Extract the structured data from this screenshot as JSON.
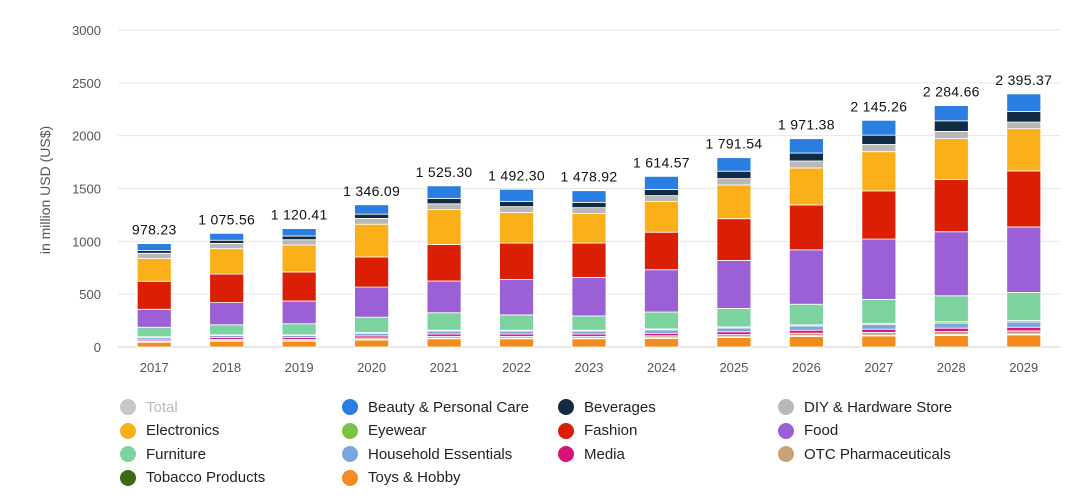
{
  "chart_data": {
    "type": "bar",
    "stacked": true,
    "ylabel": "in million USD (US$)",
    "ylim": [
      0,
      3000
    ],
    "yticks": [
      "0",
      "500",
      "1000",
      "1500",
      "2000",
      "2500",
      "3000"
    ],
    "grid": true,
    "legend_position": "bottom",
    "categories": [
      "2017",
      "2018",
      "2019",
      "2020",
      "2021",
      "2022",
      "2023",
      "2024",
      "2025",
      "2026",
      "2027",
      "2028",
      "2029"
    ],
    "totals": [
      978.23,
      1075.56,
      1120.41,
      1346.09,
      1525.3,
      1492.3,
      1478.92,
      1614.57,
      1791.54,
      1971.38,
      2145.26,
      2284.66,
      2395.37
    ],
    "total_labels": [
      "978.23",
      "1 075.56",
      "1 120.41",
      "1 346.09",
      "1 525.30",
      "1 492.30",
      "1 478.92",
      "1 614.57",
      "1 791.54",
      "1 971.38",
      "2 145.26",
      "2 284.66",
      "2 395.37"
    ],
    "series": [
      {
        "name": "Toys & Hobby",
        "color": "#f28c1e",
        "values": [
          45,
          55,
          55,
          65,
          78,
          78,
          78,
          80,
          90,
          100,
          105,
          110,
          115
        ]
      },
      {
        "name": "Tobacco Products",
        "color": "#3d6b12",
        "values": [
          4,
          4,
          4,
          5,
          5,
          5,
          5,
          6,
          6,
          7,
          7,
          8,
          8
        ]
      },
      {
        "name": "OTC Pharmaceuticals",
        "color": "#c9a27a",
        "values": [
          10,
          12,
          12,
          15,
          18,
          18,
          18,
          20,
          22,
          24,
          26,
          28,
          30
        ]
      },
      {
        "name": "Media",
        "color": "#d9127a",
        "values": [
          15,
          18,
          18,
          20,
          22,
          22,
          22,
          24,
          26,
          28,
          30,
          32,
          34
        ]
      },
      {
        "name": "Household Essentials",
        "color": "#7aa6e0",
        "values": [
          18,
          20,
          20,
          25,
          28,
          28,
          28,
          32,
          36,
          40,
          44,
          48,
          50
        ]
      },
      {
        "name": "Eyewear",
        "color": "#7cc242",
        "values": [
          5,
          6,
          6,
          7,
          8,
          8,
          8,
          9,
          10,
          11,
          12,
          13,
          14
        ]
      },
      {
        "name": "Furniture",
        "color": "#7dd3a0",
        "values": [
          90,
          95,
          105,
          145,
          165,
          145,
          135,
          160,
          175,
          195,
          225,
          245,
          265
        ]
      },
      {
        "name": "Food",
        "color": "#9b5fd6",
        "values": [
          170,
          210,
          215,
          285,
          300,
          335,
          365,
          400,
          455,
          515,
          570,
          605,
          620
        ]
      },
      {
        "name": "Fashion",
        "color": "#db1f05",
        "values": [
          265,
          270,
          275,
          285,
          345,
          345,
          325,
          355,
          395,
          425,
          455,
          495,
          530
        ]
      },
      {
        "name": "Electronics",
        "color": "#fbb01a",
        "values": [
          215,
          240,
          255,
          310,
          330,
          290,
          280,
          290,
          320,
          350,
          370,
          385,
          400
        ]
      },
      {
        "name": "DIY & Hardware Store",
        "color": "#b8b8b8",
        "values": [
          50,
          50,
          50,
          55,
          55,
          55,
          55,
          56,
          60,
          66,
          68,
          68,
          62
        ]
      },
      {
        "name": "Beverages",
        "color": "#132a43",
        "values": [
          25,
          30,
          35,
          40,
          50,
          50,
          50,
          58,
          70,
          75,
          88,
          100,
          100
        ]
      },
      {
        "name": "Beauty & Personal Care",
        "color": "#2a7de1",
        "values": [
          66,
          65,
          70,
          89,
          120,
          114,
          110,
          124,
          128,
          136,
          140,
          144,
          167
        ]
      }
    ]
  },
  "legend": [
    {
      "label": "Total",
      "color": "#c8c8c8",
      "muted": true
    },
    {
      "label": "Beauty & Personal Care",
      "color": "#2a7de1"
    },
    {
      "label": "Beverages",
      "color": "#132a43"
    },
    {
      "label": "DIY & Hardware Store",
      "color": "#b8b8b8"
    },
    {
      "label": "Electronics",
      "color": "#fbb01a"
    },
    {
      "label": "Eyewear",
      "color": "#7cc242"
    },
    {
      "label": "Fashion",
      "color": "#db1f05"
    },
    {
      "label": "Food",
      "color": "#9b5fd6"
    },
    {
      "label": "Furniture",
      "color": "#7dd3a0"
    },
    {
      "label": "Household Essentials",
      "color": "#7aa6e0"
    },
    {
      "label": "Media",
      "color": "#d9127a"
    },
    {
      "label": "OTC Pharmaceuticals",
      "color": "#c9a27a"
    },
    {
      "label": "Tobacco Products",
      "color": "#3d6b12"
    },
    {
      "label": "Toys & Hobby",
      "color": "#f28c1e"
    }
  ]
}
